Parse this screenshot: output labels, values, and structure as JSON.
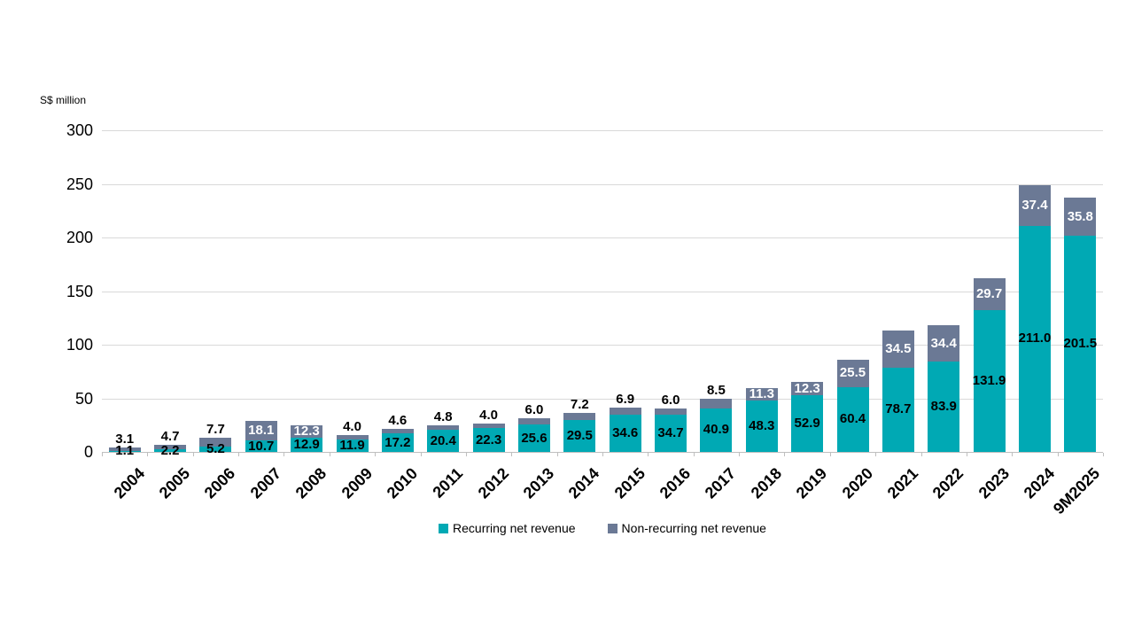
{
  "chart_data": {
    "type": "bar",
    "stacked": true,
    "unit_label": "S$ million",
    "categories": [
      "2004",
      "2005",
      "2006",
      "2007",
      "2008",
      "2009",
      "2010",
      "2011",
      "2012",
      "2013",
      "2014",
      "2015",
      "2016",
      "2017",
      "2018",
      "2019",
      "2020",
      "2021",
      "2022",
      "2023",
      "2024",
      "9M2025"
    ],
    "series": [
      {
        "name": "Recurring net revenue",
        "color": "#00a9b4",
        "label_color": "#000000",
        "values": [
          1.1,
          2.2,
          5.2,
          10.7,
          12.9,
          11.9,
          17.2,
          20.4,
          22.3,
          25.6,
          29.5,
          34.6,
          34.7,
          40.9,
          48.3,
          52.9,
          60.4,
          78.7,
          83.9,
          131.9,
          211.0,
          201.5
        ]
      },
      {
        "name": "Non-recurring net revenue",
        "color": "#6b7995",
        "label_color_inside": "#ffffff",
        "label_color_outside": "#000000",
        "values": [
          3.1,
          4.7,
          7.7,
          18.1,
          12.3,
          4.0,
          4.6,
          4.8,
          4.0,
          6.0,
          7.2,
          6.9,
          6.0,
          8.5,
          11.3,
          12.3,
          25.5,
          34.5,
          34.4,
          29.7,
          37.4,
          35.8
        ]
      }
    ],
    "ylim": [
      0,
      300
    ],
    "yticks": [
      0,
      50,
      100,
      150,
      200,
      250,
      300
    ],
    "grid": true,
    "legend_position": "bottom",
    "value_decimals": 1,
    "inside_label_min_value": 11,
    "gridline_color": "#d9d9d9",
    "axis_line_color": "#bfbfbf"
  }
}
